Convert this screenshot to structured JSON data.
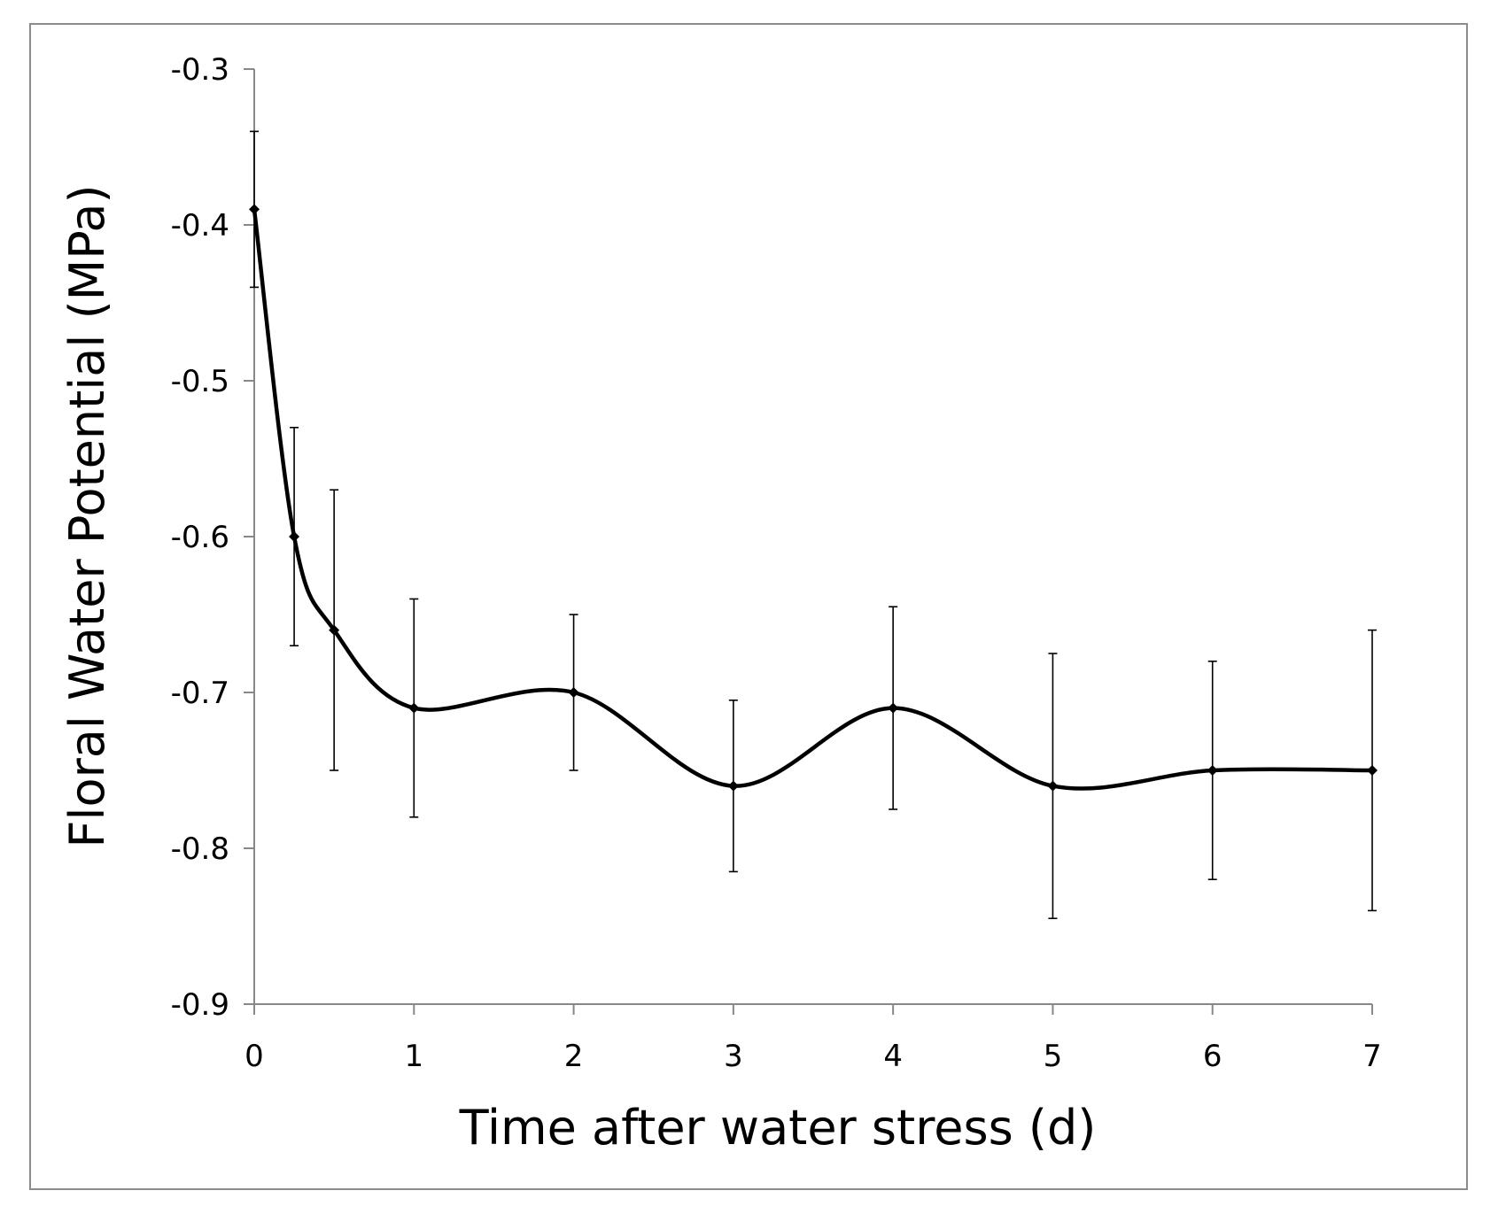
{
  "chart_data": {
    "type": "line",
    "title": "",
    "xlabel": "Time after water stress (d)",
    "ylabel": "Floral Water Potential (MPa)",
    "xlim": [
      0,
      7
    ],
    "ylim": [
      -0.9,
      -0.3
    ],
    "x_ticks": [
      0,
      1,
      2,
      3,
      4,
      5,
      6,
      7
    ],
    "x_tick_labels": [
      "0",
      "1",
      "2",
      "3",
      "4",
      "5",
      "6",
      "7"
    ],
    "y_ticks": [
      -0.3,
      -0.4,
      -0.5,
      -0.6,
      -0.7,
      -0.8,
      -0.9
    ],
    "y_tick_labels": [
      "-0.3",
      "-0.4",
      "-0.5",
      "-0.6",
      "-0.7",
      "-0.8",
      "-0.9"
    ],
    "grid": false,
    "smooth": true,
    "series": [
      {
        "name": "Floral water potential",
        "color": "#000000",
        "marker": "diamond",
        "x": [
          0,
          0.25,
          0.5,
          1,
          2,
          3,
          4,
          5,
          6,
          7
        ],
        "y": [
          -0.39,
          -0.6,
          -0.66,
          -0.71,
          -0.7,
          -0.76,
          -0.71,
          -0.76,
          -0.75,
          -0.75
        ],
        "error": [
          0.05,
          0.07,
          0.09,
          0.07,
          0.05,
          0.055,
          0.065,
          0.085,
          0.07,
          0.09
        ]
      }
    ]
  }
}
